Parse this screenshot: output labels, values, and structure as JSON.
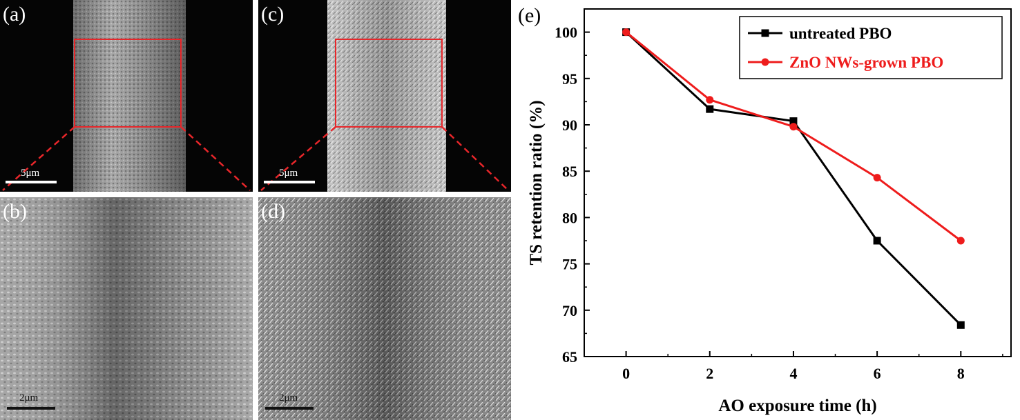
{
  "panels": {
    "a": {
      "label": "(a)",
      "scale": "5μm"
    },
    "b": {
      "label": "(b)",
      "scale": "2μm"
    },
    "c": {
      "label": "(c)",
      "scale": "5μm"
    },
    "d": {
      "label": "(d)",
      "scale": "2μm"
    }
  },
  "colors": {
    "untreated": "#000000",
    "zno": "#ee1c1c",
    "zoom_box": "#e8262a"
  },
  "chart_data": {
    "type": "line",
    "panel_label": "(e)",
    "xlabel": "AO exposure time (h)",
    "ylabel": "TS retention ratio (%)",
    "xlim": [
      -1.0,
      9.2
    ],
    "ylim": [
      65,
      102.5
    ],
    "xticks": [
      0,
      2,
      4,
      6,
      8
    ],
    "yticks": [
      65,
      70,
      75,
      80,
      85,
      90,
      95,
      100
    ],
    "legend_position": "top-right",
    "series": [
      {
        "name": "untreated PBO",
        "color": "#000000",
        "marker": "square",
        "x": [
          0,
          2,
          4,
          6,
          8
        ],
        "y": [
          100,
          91.7,
          90.4,
          77.5,
          68.4
        ]
      },
      {
        "name": "ZnO NWs-grown PBO",
        "color": "#ee1c1c",
        "marker": "circle",
        "x": [
          0,
          2,
          4,
          6,
          8
        ],
        "y": [
          100,
          92.7,
          89.8,
          84.3,
          77.5
        ]
      }
    ]
  }
}
